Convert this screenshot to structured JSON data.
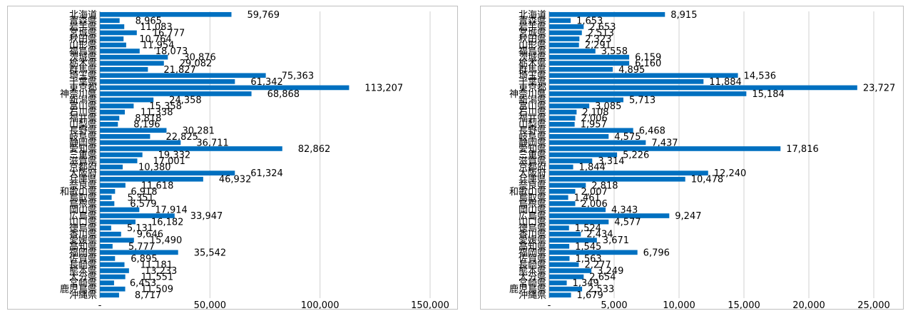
{
  "colors": {
    "bar": "#0070c0",
    "grid": "#d0d0d0",
    "axis": "#808080"
  },
  "chart_data": [
    {
      "type": "bar",
      "orientation": "horizontal",
      "categories": [
        "北海道",
        "青森県",
        "岩手県",
        "宮城県",
        "秋田県",
        "山形県",
        "福島県",
        "茨城県",
        "栃木県",
        "群馬県",
        "埼玉県",
        "千葉県",
        "東京都",
        "神奈川県",
        "新潟県",
        "富山県",
        "石川県",
        "福井県",
        "山梨県",
        "長野県",
        "岐阜県",
        "静岡県",
        "愛知県",
        "三重県",
        "滋賀県",
        "京都府",
        "大阪府",
        "兵庫県",
        "奈良県",
        "和歌山県",
        "鳥取県",
        "島根県",
        "岡山県",
        "広島県",
        "山口県",
        "徳島県",
        "香川県",
        "愛媛県",
        "高知県",
        "福岡県",
        "佐賀県",
        "長崎県",
        "熊本県",
        "大分県",
        "宮崎県",
        "鹿児島県",
        "沖縄県"
      ],
      "values": [
        59769,
        8965,
        11083,
        16777,
        10764,
        11954,
        18073,
        30876,
        29082,
        21827,
        75363,
        61342,
        113207,
        68868,
        24358,
        15358,
        11338,
        8818,
        8196,
        30281,
        22825,
        36711,
        82862,
        19332,
        17001,
        10380,
        61324,
        46932,
        11618,
        6918,
        5351,
        6579,
        17914,
        33947,
        16182,
        5131,
        9646,
        15490,
        5777,
        35542,
        6895,
        11181,
        13233,
        11551,
        6453,
        11509,
        8717
      ],
      "value_labels": [
        "59,769",
        "8,965",
        "11,083",
        "16,777",
        "10,764",
        "11,954",
        "18,073",
        "30,876",
        "29,082",
        "21,827",
        "75,363",
        "61,342",
        "113,207",
        "68,868",
        "24,358",
        "15,358",
        "11,338",
        "8,818",
        "8,196",
        "30,281",
        "22,825",
        "36,711",
        "82,862",
        "19,332",
        "17,001",
        "10,380",
        "61,324",
        "46,932",
        "11,618",
        "6,918",
        "5,351",
        "6,579",
        "17,914",
        "33,947",
        "16,182",
        "5,131",
        "9,646",
        "15,490",
        "5,777",
        "35,542",
        "6,895",
        "11,181",
        "13,233",
        "11,551",
        "6,453",
        "11,509",
        "8,717"
      ],
      "xlim": [
        0,
        150000
      ],
      "x_ticks": [
        0,
        50000,
        100000,
        150000
      ],
      "x_tick_labels": [
        "-",
        "50,000",
        "100,000",
        "150,000"
      ],
      "grid": true
    },
    {
      "type": "bar",
      "orientation": "horizontal",
      "categories": [
        "北海道",
        "青森県",
        "岩手県",
        "宮城県",
        "秋田県",
        "山形県",
        "福島県",
        "茨城県",
        "栃木県",
        "群馬県",
        "埼玉県",
        "千葉県",
        "東京都",
        "神奈川県",
        "新潟県",
        "富山県",
        "石川県",
        "福井県",
        "山梨県",
        "長野県",
        "岐阜県",
        "静岡県",
        "愛知県",
        "三重県",
        "滋賀県",
        "京都府",
        "大阪府",
        "兵庫県",
        "奈良県",
        "和歌山県",
        "鳥取県",
        "島根県",
        "岡山県",
        "広島県",
        "山口県",
        "徳島県",
        "香川県",
        "愛媛県",
        "高知県",
        "福岡県",
        "佐賀県",
        "長崎県",
        "熊本県",
        "大分県",
        "宮崎県",
        "鹿児島県",
        "沖縄県"
      ],
      "values": [
        8915,
        1653,
        2653,
        2513,
        2323,
        2291,
        3558,
        6159,
        6160,
        4895,
        14536,
        11884,
        23727,
        15184,
        5713,
        3085,
        2108,
        2006,
        1957,
        6468,
        4575,
        7437,
        17816,
        5226,
        3314,
        1844,
        12240,
        10478,
        2818,
        2007,
        1461,
        2006,
        4343,
        9247,
        4577,
        1524,
        2434,
        3671,
        1545,
        6796,
        1563,
        2277,
        3249,
        2654,
        1349,
        2533,
        1679
      ],
      "value_labels": [
        "8,915",
        "1,653",
        "2,653",
        "2,513",
        "2,323",
        "2,291",
        "3,558",
        "6,159",
        "6,160",
        "4,895",
        "14,536",
        "11,884",
        "23,727",
        "15,184",
        "5,713",
        "3,085",
        "2,108",
        "2,006",
        "1,957",
        "6,468",
        "4,575",
        "7,437",
        "17,816",
        "5,226",
        "3,314",
        "1,844",
        "12,240",
        "10,478",
        "2,818",
        "2,007",
        "1,461",
        "2,006",
        "4,343",
        "9,247",
        "4,577",
        "1,524",
        "2,434",
        "3,671",
        "1,545",
        "6,796",
        "1,563",
        "2,277",
        "3,249",
        "2,654",
        "1,349",
        "2,533",
        "1,679"
      ],
      "xlim": [
        0,
        25000
      ],
      "x_ticks": [
        0,
        5000,
        10000,
        15000,
        20000,
        25000
      ],
      "x_tick_labels": [
        "-",
        "5,000",
        "10,000",
        "15,000",
        "20,000",
        "25,000"
      ],
      "grid": true
    }
  ]
}
